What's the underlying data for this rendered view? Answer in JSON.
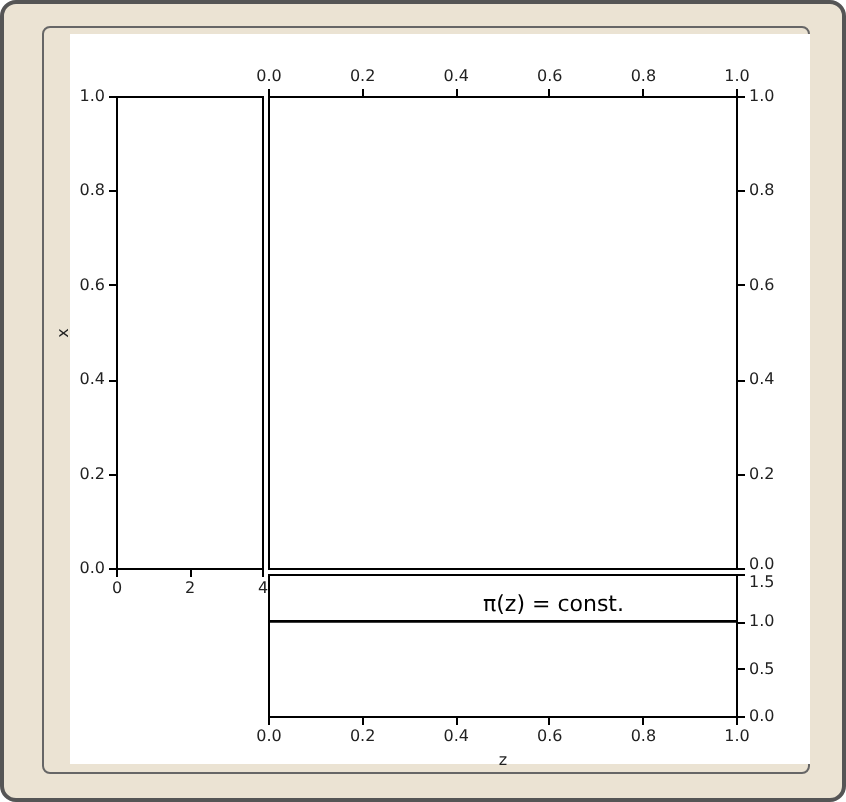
{
  "chart_data": [
    {
      "type": "line",
      "ylabel": "x",
      "xlim": [
        0,
        4
      ],
      "xticks": [
        0,
        2,
        4
      ],
      "ylim": [
        0,
        1
      ],
      "yticks": [
        {
          "value": 0,
          "label": "0.0"
        },
        {
          "value": 0.2,
          "label": "0.2"
        },
        {
          "value": 0.4,
          "label": "0.4"
        },
        {
          "value": 0.6,
          "label": "0.6"
        },
        {
          "value": 0.8,
          "label": "0.8"
        },
        {
          "value": 1,
          "label": "1.0"
        }
      ]
    },
    {
      "type": "line",
      "xlim": [
        0,
        1
      ],
      "xticks": [
        {
          "value": 0,
          "label": "0.0"
        },
        {
          "value": 0.2,
          "label": "0.2"
        },
        {
          "value": 0.4,
          "label": "0.4"
        },
        {
          "value": 0.6,
          "label": "0.6"
        },
        {
          "value": 0.8,
          "label": "0.8"
        },
        {
          "value": 1,
          "label": "1.0"
        }
      ],
      "y2lim": [
        0,
        1
      ],
      "y2ticks": [
        {
          "value": 0,
          "label": "0.0"
        },
        {
          "value": 0.2,
          "label": "0.2"
        },
        {
          "value": 0.4,
          "label": "0.4"
        },
        {
          "value": 0.6,
          "label": "0.6"
        },
        {
          "value": 0.8,
          "label": "0.8"
        },
        {
          "value": 1,
          "label": "1.0"
        }
      ]
    },
    {
      "type": "line",
      "xlabel": "z",
      "xlim": [
        0,
        1
      ],
      "xticks": [
        {
          "value": 0,
          "label": "0.0"
        },
        {
          "value": 0.2,
          "label": "0.2"
        },
        {
          "value": 0.4,
          "label": "0.4"
        },
        {
          "value": 0.6,
          "label": "0.6"
        },
        {
          "value": 0.8,
          "label": "0.8"
        },
        {
          "value": 1,
          "label": "1.0"
        }
      ],
      "y2lim": [
        0,
        1.5
      ],
      "y2ticks": [
        {
          "value": 0,
          "label": "0.0"
        },
        {
          "value": 0.5,
          "label": "0.5"
        },
        {
          "value": 1,
          "label": "1.0"
        },
        {
          "value": 1.5,
          "label": "1.5"
        }
      ],
      "annotations": [
        "π(z) = const."
      ],
      "series": [
        {
          "type": "line",
          "axis": "y2",
          "color": "#000000",
          "x": [
            0,
            1
          ],
          "values": [
            1,
            1
          ]
        }
      ]
    }
  ]
}
